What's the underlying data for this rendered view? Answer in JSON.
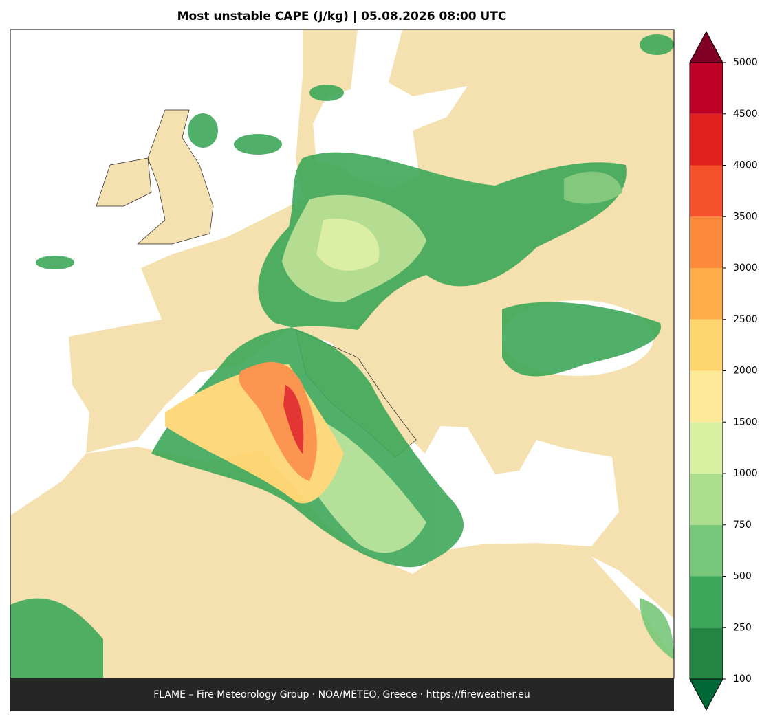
{
  "title": "Most unstable CAPE (J/kg)  |  05.08.2026 08:00 UTC",
  "footer": "FLAME – Fire Meteorology Group · NOA/METEO, Greece · https://fireweather.eu",
  "colorbar": {
    "levels": [
      100,
      250,
      500,
      750,
      1000,
      1500,
      2000,
      2500,
      3000,
      3500,
      4000,
      4500,
      5000
    ],
    "colors": [
      "#238443",
      "#3ea85a",
      "#78c679",
      "#addd8e",
      "#d9f0a3",
      "#fee999",
      "#fed46e",
      "#fdae4b",
      "#fc8a3c",
      "#f5512b",
      "#e0201e",
      "#bd0026"
    ],
    "under_color": "#006837",
    "over_color": "#800026"
  }
}
